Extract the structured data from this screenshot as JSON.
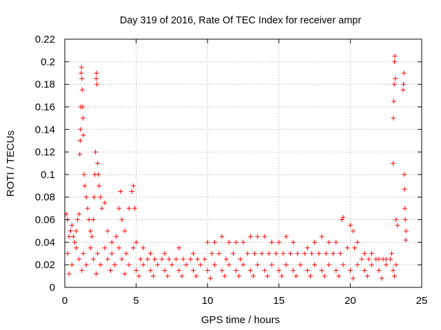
{
  "chart_data": {
    "type": "scatter",
    "title": "Day 319 of 2016, Rate Of TEC Index for receiver ampr",
    "xlabel": "GPS time / hours",
    "ylabel": "ROTI / TECUs",
    "xlim": [
      0,
      25
    ],
    "ylim": [
      0,
      0.22
    ],
    "xticks": [
      "0",
      "5",
      "10",
      "15",
      "20",
      "25"
    ],
    "yticks": [
      "0",
      "0.02",
      "0.04",
      "0.06",
      "0.08",
      "0.1",
      "0.12",
      "0.14",
      "0.16",
      "0.18",
      "0.2",
      "0.22"
    ],
    "grid": true,
    "marker": "plus",
    "color": "#ff0000",
    "series": [
      {
        "points": [
          [
            0.1,
            0.065
          ],
          [
            0.2,
            0.06
          ],
          [
            0.3,
            0.045
          ],
          [
            0.4,
            0.05
          ],
          [
            0.5,
            0.055
          ],
          [
            0.6,
            0.045
          ],
          [
            0.7,
            0.04
          ],
          [
            0.8,
            0.05
          ],
          [
            0.9,
            0.06
          ],
          [
            1.0,
            0.065
          ],
          [
            1.05,
            0.118
          ],
          [
            1.08,
            0.13
          ],
          [
            1.1,
            0.14
          ],
          [
            1.12,
            0.16
          ],
          [
            1.15,
            0.19
          ],
          [
            1.17,
            0.195
          ],
          [
            1.2,
            0.185
          ],
          [
            1.22,
            0.175
          ],
          [
            1.25,
            0.16
          ],
          [
            1.28,
            0.15
          ],
          [
            1.3,
            0.135
          ],
          [
            1.35,
            0.1
          ],
          [
            1.4,
            0.09
          ],
          [
            1.5,
            0.08
          ],
          [
            1.6,
            0.07
          ],
          [
            1.7,
            0.06
          ],
          [
            1.8,
            0.05
          ],
          [
            1.9,
            0.045
          ],
          [
            2.0,
            0.06
          ],
          [
            2.05,
            0.08
          ],
          [
            2.1,
            0.1
          ],
          [
            2.15,
            0.12
          ],
          [
            2.2,
            0.185
          ],
          [
            2.22,
            0.19
          ],
          [
            2.25,
            0.18
          ],
          [
            2.3,
            0.11
          ],
          [
            2.35,
            0.1
          ],
          [
            2.4,
            0.09
          ],
          [
            2.5,
            0.08
          ],
          [
            2.6,
            0.07
          ],
          [
            2.8,
            0.075
          ],
          [
            3.0,
            0.05
          ],
          [
            3.3,
            0.04
          ],
          [
            3.6,
            0.045
          ],
          [
            3.8,
            0.07
          ],
          [
            3.9,
            0.085
          ],
          [
            4.0,
            0.06
          ],
          [
            4.2,
            0.05
          ],
          [
            4.5,
            0.07
          ],
          [
            4.7,
            0.085
          ],
          [
            4.8,
            0.09
          ],
          [
            4.9,
            0.07
          ],
          [
            5.0,
            0.04
          ],
          [
            5.5,
            0.035
          ],
          [
            6.0,
            0.03
          ],
          [
            7.0,
            0.03
          ],
          [
            8.0,
            0.035
          ],
          [
            9.0,
            0.03
          ],
          [
            10.0,
            0.04
          ],
          [
            10.5,
            0.04
          ],
          [
            11.0,
            0.045
          ],
          [
            11.5,
            0.04
          ],
          [
            12.0,
            0.04
          ],
          [
            12.5,
            0.04
          ],
          [
            13.0,
            0.045
          ],
          [
            13.5,
            0.045
          ],
          [
            14.0,
            0.045
          ],
          [
            14.5,
            0.04
          ],
          [
            15.0,
            0.04
          ],
          [
            15.5,
            0.045
          ],
          [
            16.0,
            0.04
          ],
          [
            17.0,
            0.035
          ],
          [
            17.5,
            0.04
          ],
          [
            18.0,
            0.045
          ],
          [
            18.5,
            0.04
          ],
          [
            19.0,
            0.04
          ],
          [
            19.4,
            0.06
          ],
          [
            19.5,
            0.062
          ],
          [
            20.0,
            0.055
          ],
          [
            20.2,
            0.05
          ],
          [
            20.5,
            0.04
          ],
          [
            21.0,
            0.03
          ],
          [
            21.5,
            0.03
          ],
          [
            22.0,
            0.025
          ],
          [
            22.5,
            0.025
          ],
          [
            22.9,
            0.03
          ],
          [
            23.0,
            0.11
          ],
          [
            23.02,
            0.15
          ],
          [
            23.05,
            0.165
          ],
          [
            23.08,
            0.18
          ],
          [
            23.1,
            0.2
          ],
          [
            23.12,
            0.205
          ],
          [
            23.15,
            0.185
          ],
          [
            23.2,
            0.06
          ],
          [
            23.3,
            0.055
          ],
          [
            23.7,
            0.175
          ],
          [
            23.72,
            0.18
          ],
          [
            23.75,
            0.19
          ],
          [
            23.78,
            0.1
          ],
          [
            23.8,
            0.087
          ],
          [
            23.82,
            0.07
          ],
          [
            23.85,
            0.06
          ],
          [
            23.88,
            0.042
          ],
          [
            23.9,
            0.05
          ],
          [
            0.5,
            0.02
          ],
          [
            1.0,
            0.025
          ],
          [
            1.5,
            0.02
          ],
          [
            2.0,
            0.025
          ],
          [
            2.5,
            0.02
          ],
          [
            3.0,
            0.025
          ],
          [
            3.5,
            0.02
          ],
          [
            4.0,
            0.025
          ],
          [
            4.5,
            0.02
          ],
          [
            5.0,
            0.015
          ],
          [
            5.5,
            0.02
          ],
          [
            6.0,
            0.015
          ],
          [
            6.5,
            0.02
          ],
          [
            7.0,
            0.015
          ],
          [
            7.5,
            0.02
          ],
          [
            8.0,
            0.015
          ],
          [
            8.5,
            0.02
          ],
          [
            9.0,
            0.015
          ],
          [
            9.5,
            0.02
          ],
          [
            10.0,
            0.015
          ],
          [
            10.5,
            0.02
          ],
          [
            11.0,
            0.015
          ],
          [
            11.5,
            0.02
          ],
          [
            12.0,
            0.015
          ],
          [
            12.5,
            0.02
          ],
          [
            13.0,
            0.015
          ],
          [
            13.5,
            0.02
          ],
          [
            14.0,
            0.015
          ],
          [
            14.5,
            0.02
          ],
          [
            15.0,
            0.015
          ],
          [
            15.5,
            0.02
          ],
          [
            16.0,
            0.015
          ],
          [
            16.5,
            0.02
          ],
          [
            17.0,
            0.015
          ],
          [
            17.5,
            0.02
          ],
          [
            18.0,
            0.015
          ],
          [
            18.5,
            0.02
          ],
          [
            19.0,
            0.015
          ],
          [
            19.5,
            0.02
          ],
          [
            20.0,
            0.015
          ],
          [
            20.5,
            0.02
          ],
          [
            21.0,
            0.015
          ],
          [
            21.5,
            0.02
          ],
          [
            22.0,
            0.015
          ],
          [
            22.5,
            0.02
          ],
          [
            23.0,
            0.015
          ],
          [
            23.2,
            0.02
          ],
          [
            0.2,
            0.03
          ],
          [
            0.8,
            0.035
          ],
          [
            1.3,
            0.03
          ],
          [
            1.8,
            0.035
          ],
          [
            2.3,
            0.03
          ],
          [
            2.8,
            0.035
          ],
          [
            3.3,
            0.03
          ],
          [
            3.8,
            0.035
          ],
          [
            4.3,
            0.03
          ],
          [
            4.8,
            0.035
          ],
          [
            5.3,
            0.025
          ],
          [
            5.8,
            0.025
          ],
          [
            6.3,
            0.025
          ],
          [
            6.8,
            0.025
          ],
          [
            7.3,
            0.025
          ],
          [
            7.8,
            0.025
          ],
          [
            8.3,
            0.025
          ],
          [
            8.8,
            0.025
          ],
          [
            9.3,
            0.025
          ],
          [
            9.8,
            0.025
          ],
          [
            10.3,
            0.03
          ],
          [
            10.8,
            0.03
          ],
          [
            11.3,
            0.025
          ],
          [
            11.8,
            0.03
          ],
          [
            12.3,
            0.025
          ],
          [
            12.8,
            0.03
          ],
          [
            13.3,
            0.03
          ],
          [
            13.8,
            0.03
          ],
          [
            14.3,
            0.03
          ],
          [
            14.8,
            0.03
          ],
          [
            15.3,
            0.03
          ],
          [
            15.8,
            0.03
          ],
          [
            16.3,
            0.03
          ],
          [
            16.8,
            0.03
          ],
          [
            17.3,
            0.03
          ],
          [
            17.8,
            0.03
          ],
          [
            18.3,
            0.03
          ],
          [
            18.8,
            0.03
          ],
          [
            19.3,
            0.03
          ],
          [
            19.8,
            0.035
          ],
          [
            20.3,
            0.035
          ],
          [
            20.8,
            0.025
          ],
          [
            21.3,
            0.025
          ],
          [
            21.8,
            0.025
          ],
          [
            22.3,
            0.025
          ],
          [
            22.8,
            0.025
          ],
          [
            0.3,
            0.012
          ],
          [
            1.2,
            0.015
          ],
          [
            2.2,
            0.012
          ],
          [
            3.2,
            0.015
          ],
          [
            4.2,
            0.012
          ],
          [
            5.2,
            0.01
          ],
          [
            6.2,
            0.01
          ],
          [
            7.2,
            0.01
          ],
          [
            8.2,
            0.01
          ],
          [
            9.2,
            0.01
          ],
          [
            10.2,
            0.008
          ],
          [
            11.2,
            0.01
          ],
          [
            12.2,
            0.01
          ],
          [
            13.2,
            0.01
          ],
          [
            14.2,
            0.01
          ],
          [
            15.2,
            0.01
          ],
          [
            16.2,
            0.01
          ],
          [
            17.2,
            0.01
          ],
          [
            18.2,
            0.01
          ],
          [
            19.2,
            0.01
          ],
          [
            20.2,
            0.008
          ],
          [
            21.2,
            0.01
          ],
          [
            22.2,
            0.008
          ],
          [
            23.1,
            0.01
          ]
        ]
      }
    ]
  }
}
